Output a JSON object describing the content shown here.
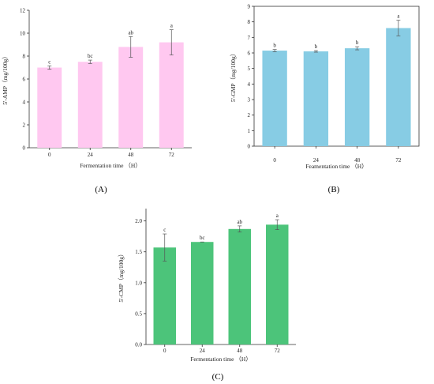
{
  "chart_data": [
    {
      "type": "bar",
      "panel_label": "(A)",
      "categories": [
        "0",
        "24",
        "48",
        "72"
      ],
      "values": [
        7.0,
        7.5,
        8.8,
        9.2
      ],
      "errors": [
        0.15,
        0.15,
        0.9,
        1.1
      ],
      "significance": [
        "c",
        "bc",
        "ab",
        "a"
      ],
      "xlabel": "Fermentation time （H）",
      "ylabel": "5'-AMP（mg/100g）",
      "ylim": [
        0,
        12
      ],
      "yticks": [
        0,
        2,
        4,
        6,
        8,
        10,
        12
      ],
      "color": "#ffc8f0",
      "box": false
    },
    {
      "type": "bar",
      "panel_label": "(B)",
      "categories": [
        "0",
        "24",
        "48",
        "72"
      ],
      "values": [
        6.15,
        6.1,
        6.3,
        7.6
      ],
      "errors": [
        0.07,
        0.05,
        0.1,
        0.5
      ],
      "significance": [
        "b",
        "b",
        "b",
        "a"
      ],
      "xlabel": "Feamentation time （H）",
      "ylabel": "5'-GMP（mg/100g）",
      "ylim": [
        0,
        9
      ],
      "yticks": [
        0,
        1,
        2,
        3,
        4,
        5,
        6,
        7,
        8,
        9
      ],
      "color": "#87cce4",
      "box": true
    },
    {
      "type": "bar",
      "panel_label": "(C)",
      "categories": [
        "0",
        "24",
        "48",
        "72"
      ],
      "values": [
        1.57,
        1.66,
        1.87,
        1.94
      ],
      "errors": [
        0.22,
        0.0,
        0.05,
        0.08
      ],
      "significance": [
        "c",
        "bc",
        "ab",
        "a"
      ],
      "xlabel": "Fermentation time （H）",
      "ylabel": "5'-CMP（mg/100g）",
      "ylim": [
        0,
        2.2
      ],
      "yticks": [
        "0.0",
        "0.5",
        "1.0",
        "1.5",
        "2.0"
      ],
      "color": "#4cc47a",
      "box": false
    }
  ]
}
